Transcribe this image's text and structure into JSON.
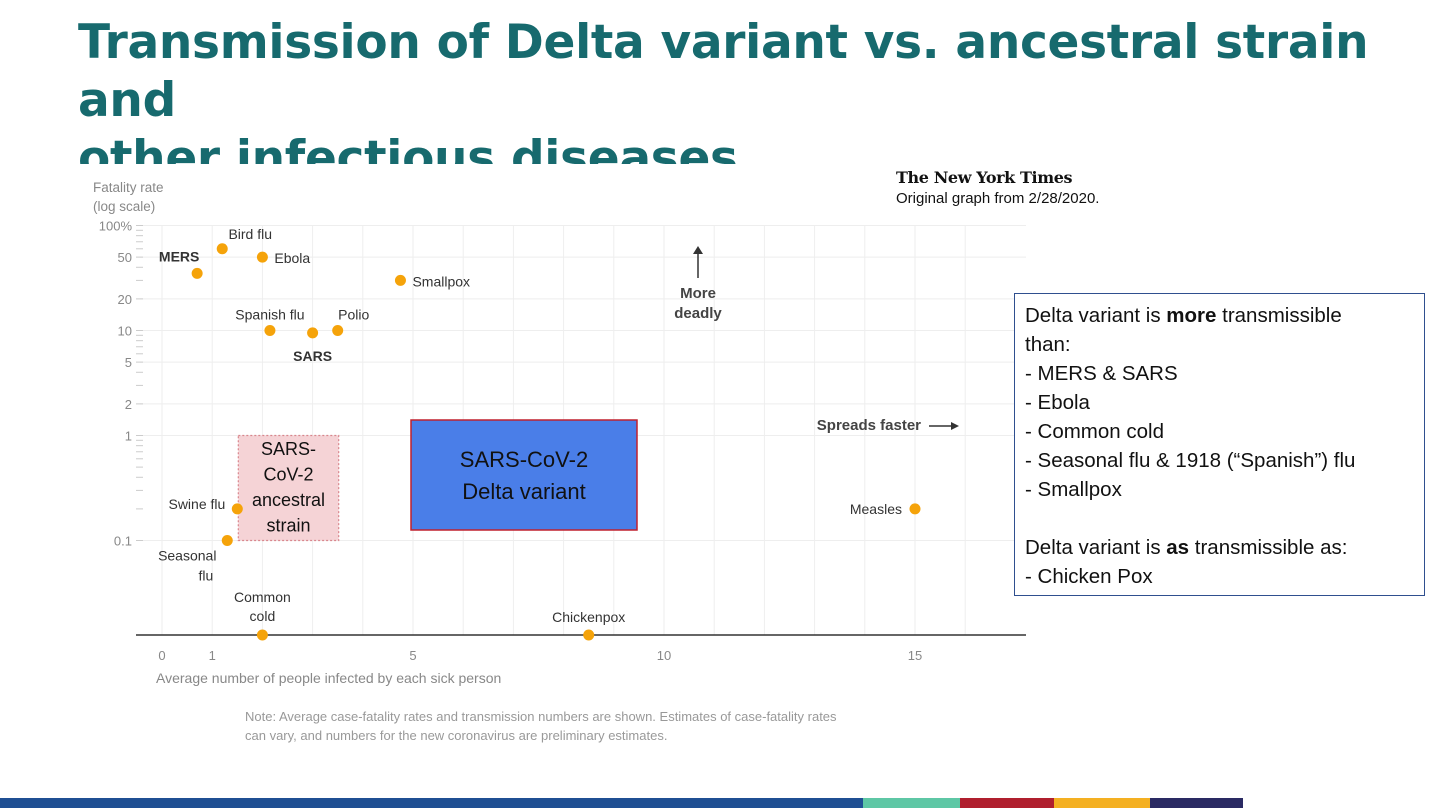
{
  "slide": {
    "title_line1": "Transmission of Delta variant vs. ancestral strain and",
    "title_line2": "other infectious diseases"
  },
  "source": {
    "logo_text": "The New York Times",
    "caption": "Original graph from 2/28/2020."
  },
  "chart_data": {
    "type": "scatter",
    "y_axis_title_line1": "Fatality rate",
    "y_axis_title_line2": "(log scale)",
    "xlabel": "Average number of people infected by each sick person",
    "yscale": "log",
    "xlim": [
      -0.8,
      17.3
    ],
    "ylim_percent": [
      0.01,
      100
    ],
    "x_ticks": [
      0,
      1,
      5,
      10,
      15
    ],
    "y_ticks": [
      {
        "value": 100,
        "label": "100%"
      },
      {
        "value": 50,
        "label": "50"
      },
      {
        "value": 20,
        "label": "20"
      },
      {
        "value": 10,
        "label": "10"
      },
      {
        "value": 5,
        "label": "5"
      },
      {
        "value": 2,
        "label": "2"
      },
      {
        "value": 1,
        "label": "1"
      },
      {
        "value": 0.1,
        "label": "0.1"
      }
    ],
    "points": [
      {
        "label": "MERS",
        "x": 0.7,
        "y": 35,
        "bold": true
      },
      {
        "label": "Bird flu",
        "x": 1.2,
        "y": 60
      },
      {
        "label": "Ebola",
        "x": 2.0,
        "y": 50
      },
      {
        "label": "Smallpox",
        "x": 4.75,
        "y": 30
      },
      {
        "label": "Spanish flu",
        "x": 2.15,
        "y": 10
      },
      {
        "label": "SARS",
        "x": 3.0,
        "y": 9.5,
        "bold": true
      },
      {
        "label": "Polio",
        "x": 3.5,
        "y": 10
      },
      {
        "label": "Swine flu",
        "x": 1.5,
        "y": 0.2
      },
      {
        "label": "Seasonal flu",
        "x": 1.3,
        "y": 0.1
      },
      {
        "label": "Measles",
        "x": 15.0,
        "y": 0.2
      },
      {
        "label": "Common cold",
        "x": 2.0,
        "y": null
      },
      {
        "label": "Chickenpox",
        "x": 8.5,
        "y": null
      }
    ],
    "annotations": {
      "more_deadly_line1": "More",
      "more_deadly_line2": "deadly",
      "spreads_faster": "Spreads faster",
      "note_line1": "Note: Average case-fatality rates and transmission numbers are shown. Estimates of case-fatality rates",
      "note_line2": "can vary, and numbers for the new coronavirus are preliminary estimates."
    },
    "overlays": [
      {
        "label_lines": [
          "SARS-",
          "CoV-2",
          "ancestral",
          "strain"
        ],
        "x_range": [
          1.5,
          3.5
        ],
        "y_range": [
          0.1,
          1
        ],
        "fill": "#f5d3d6",
        "stroke": "#d9868d"
      },
      {
        "label_lines": [
          "SARS-CoV-2",
          "Delta variant"
        ],
        "x_range": [
          5.0,
          9.5
        ],
        "y_range": [
          0.12,
          1.2
        ],
        "fill": "#4a7ee8",
        "stroke": "#c0202e"
      }
    ],
    "colors": {
      "point": "#f5a30a",
      "tick_text": "#888888",
      "label_text": "#333333"
    }
  },
  "info_box": {
    "intro_pre": "Delta variant is ",
    "intro_bold": "more",
    "intro_post": " transmissible",
    "intro_line2": "than:",
    "items": [
      "-  MERS & SARS",
      "-  Ebola",
      "-  Common cold",
      "-  Seasonal flu & 1918 (“Spanish”) flu",
      "-  Smallpox"
    ],
    "as_pre": "Delta variant is ",
    "as_bold": "as",
    "as_post": " transmissible as:",
    "as_item": "- Chicken Pox"
  },
  "footer_colors": [
    "#1f4f93",
    "#5ec7a5",
    "#b01f2e",
    "#f4b022",
    "#2a2a63",
    "#ffffff"
  ]
}
